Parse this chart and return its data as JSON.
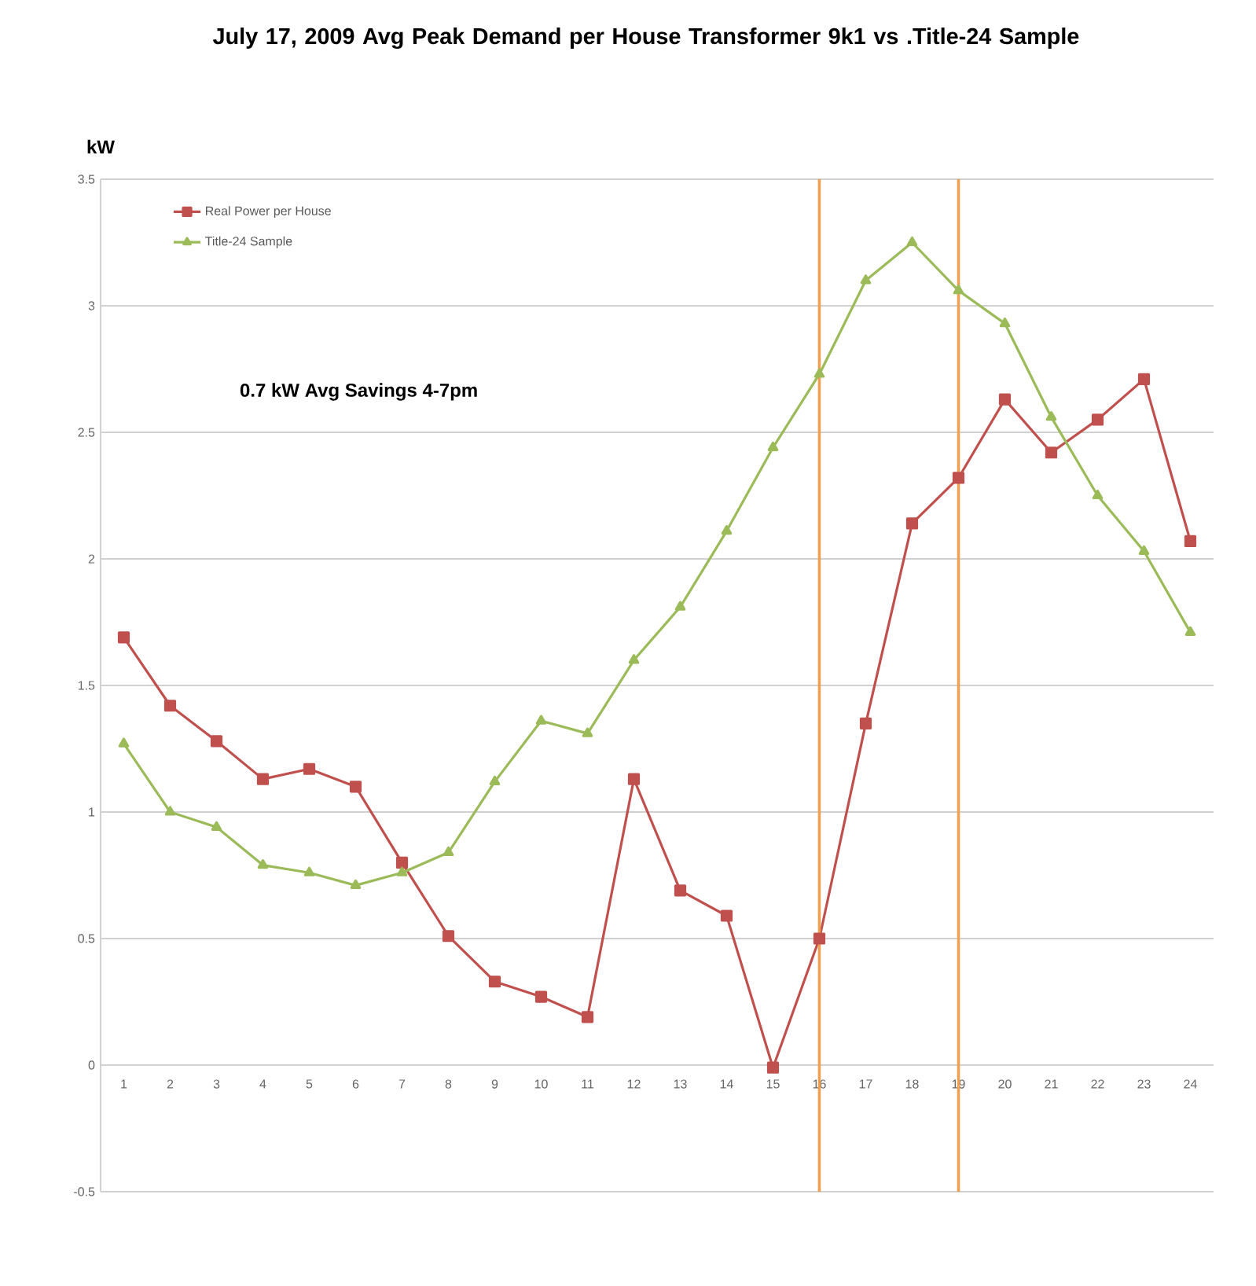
{
  "chart_data": {
    "type": "line",
    "title": "July 17, 2009 Avg Peak Demand per House Transformer 9k1 vs .Title-24 Sample",
    "ylabel": "kW",
    "annotations": [
      "0.7 kW Avg Savings 4-7pm"
    ],
    "x": [
      1,
      2,
      3,
      4,
      5,
      6,
      7,
      8,
      9,
      10,
      11,
      12,
      13,
      14,
      15,
      16,
      17,
      18,
      19,
      20,
      21,
      22,
      23,
      24
    ],
    "xlim": [
      0.5,
      24.5
    ],
    "xticks": [
      1,
      2,
      3,
      4,
      5,
      6,
      7,
      8,
      9,
      10,
      11,
      12,
      13,
      14,
      15,
      16,
      17,
      18,
      19,
      20,
      21,
      22,
      23,
      24
    ],
    "ylim": [
      -0.5,
      3.5
    ],
    "yticks": [
      -0.5,
      0,
      0.5,
      1,
      1.5,
      2,
      2.5,
      3,
      3.5
    ],
    "grid": "y",
    "legend": "top left",
    "series": [
      {
        "name": "Real Power per House",
        "color": "#c0504d",
        "marker": "square",
        "values": [
          1.69,
          1.42,
          1.28,
          1.13,
          1.17,
          1.1,
          0.8,
          0.51,
          0.33,
          0.27,
          0.19,
          1.13,
          0.69,
          0.59,
          -0.01,
          0.5,
          1.35,
          2.14,
          2.32,
          2.63,
          2.42,
          2.55,
          2.71,
          2.07
        ]
      },
      {
        "name": "Title-24 Sample",
        "color": "#9bbb59",
        "marker": "triangle",
        "values": [
          1.27,
          1.0,
          0.94,
          0.79,
          0.76,
          0.71,
          0.76,
          0.84,
          1.12,
          1.36,
          1.31,
          1.6,
          1.81,
          2.11,
          2.44,
          2.73,
          3.1,
          3.25,
          3.06,
          2.93,
          2.56,
          2.25,
          2.03,
          1.71
        ]
      }
    ],
    "ref_lines": [
      {
        "axis": "x",
        "value": 16,
        "color": "#f0a050"
      },
      {
        "axis": "x",
        "value": 19,
        "color": "#f0a050"
      }
    ]
  }
}
